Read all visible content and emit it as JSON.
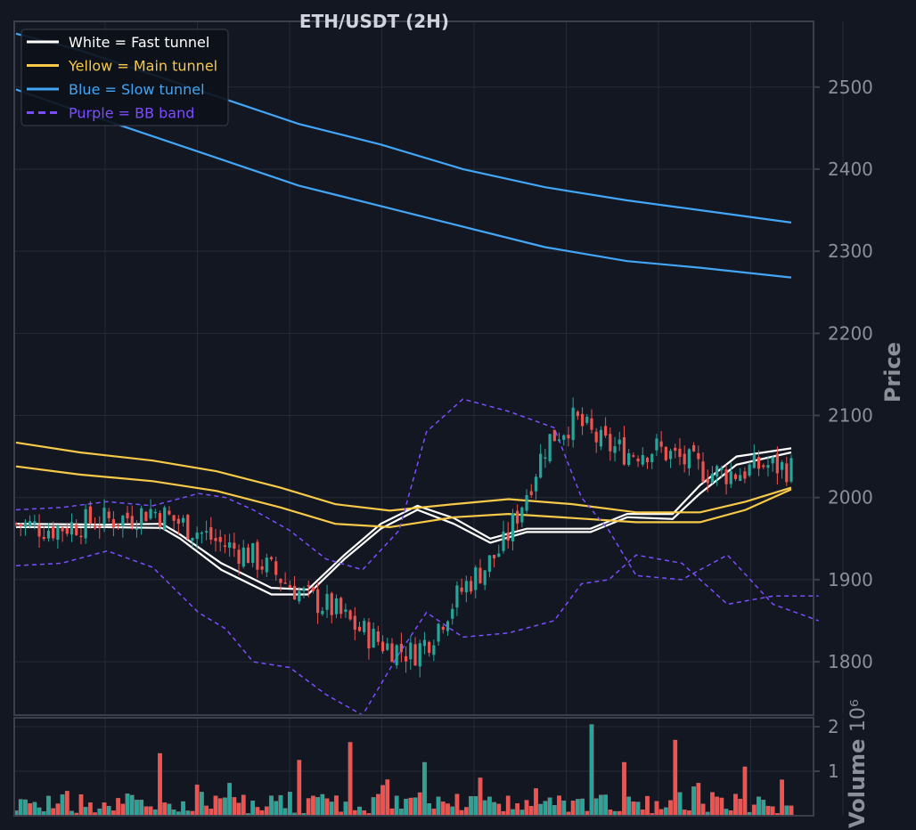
{
  "chart_data": [
    {
      "type": "candlestick",
      "title": "ETH/USDT (2H)",
      "ylabel": "Price",
      "ylim": [
        1735,
        2580
      ],
      "y_ticks": [
        1800,
        1900,
        2000,
        2100,
        2200,
        2300,
        2400,
        2500
      ],
      "grid": true,
      "legend_position": "top-left",
      "legend": [
        {
          "label": "White = Fast tunnel",
          "color": "#ffffff",
          "style": "solid"
        },
        {
          "label": "Yellow = Main tunnel",
          "color": "#f7c948",
          "style": "solid"
        },
        {
          "label": "Blue = Slow tunnel",
          "color": "#42a5f5",
          "style": "solid"
        },
        {
          "label": "Purple = BB band",
          "color": "#7c4dff",
          "style": "dashed"
        }
      ],
      "candle_count": 168,
      "close_path": [
        [
          0,
          1968
        ],
        [
          8,
          1962
        ],
        [
          16,
          1970
        ],
        [
          24,
          1975
        ],
        [
          30,
          1985
        ],
        [
          34,
          1975
        ],
        [
          40,
          1960
        ],
        [
          45,
          1945
        ],
        [
          52,
          1930
        ],
        [
          58,
          1905
        ],
        [
          64,
          1880
        ],
        [
          70,
          1865
        ],
        [
          76,
          1840
        ],
        [
          82,
          1820
        ],
        [
          88,
          1810
        ],
        [
          92,
          1830
        ],
        [
          96,
          1865
        ],
        [
          100,
          1895
        ],
        [
          104,
          1915
        ],
        [
          108,
          1940
        ],
        [
          112,
          1990
        ],
        [
          118,
          2070
        ],
        [
          124,
          2095
        ],
        [
          130,
          2065
        ],
        [
          136,
          2055
        ],
        [
          142,
          2060
        ],
        [
          148,
          2045
        ],
        [
          154,
          2030
        ],
        [
          160,
          2030
        ],
        [
          166,
          2040
        ],
        [
          172,
          2035
        ]
      ],
      "series": [
        {
          "name": "White = Fast tunnel",
          "color": "#ffffff",
          "points": [
            [
              0,
              1968
            ],
            [
              20,
              1967
            ],
            [
              32,
              1968
            ],
            [
              36,
              1955
            ],
            [
              45,
              1920
            ],
            [
              56,
              1890
            ],
            [
              64,
              1888
            ],
            [
              72,
              1930
            ],
            [
              80,
              1968
            ],
            [
              88,
              1990
            ],
            [
              96,
              1975
            ],
            [
              104,
              1950
            ],
            [
              112,
              1962
            ],
            [
              126,
              1962
            ],
            [
              134,
              1980
            ],
            [
              144,
              1980
            ],
            [
              150,
              2015
            ],
            [
              158,
              2050
            ],
            [
              170,
              2060
            ]
          ]
        },
        {
          "name": "White = Fast tunnel (lower)",
          "color": "#ffffff",
          "points": [
            [
              0,
              1964
            ],
            [
              20,
              1964
            ],
            [
              32,
              1963
            ],
            [
              36,
              1950
            ],
            [
              45,
              1912
            ],
            [
              56,
              1882
            ],
            [
              64,
              1882
            ],
            [
              72,
              1925
            ],
            [
              80,
              1962
            ],
            [
              88,
              1985
            ],
            [
              96,
              1968
            ],
            [
              104,
              1945
            ],
            [
              112,
              1958
            ],
            [
              126,
              1958
            ],
            [
              134,
              1976
            ],
            [
              144,
              1974
            ],
            [
              150,
              2005
            ],
            [
              158,
              2040
            ],
            [
              170,
              2055
            ]
          ]
        },
        {
          "name": "Yellow = Main tunnel",
          "color": "#f7c948",
          "points": [
            [
              0,
              2067
            ],
            [
              14,
              2055
            ],
            [
              30,
              2045
            ],
            [
              44,
              2032
            ],
            [
              58,
              2012
            ],
            [
              70,
              1992
            ],
            [
              82,
              1984
            ],
            [
              96,
              1992
            ],
            [
              108,
              1998
            ],
            [
              122,
              1992
            ],
            [
              136,
              1982
            ],
            [
              150,
              1982
            ],
            [
              160,
              1995
            ],
            [
              170,
              2012
            ]
          ]
        },
        {
          "name": "Yellow = Main tunnel (lower)",
          "color": "#f7c948",
          "points": [
            [
              0,
              2038
            ],
            [
              14,
              2028
            ],
            [
              30,
              2020
            ],
            [
              44,
              2008
            ],
            [
              58,
              1988
            ],
            [
              70,
              1968
            ],
            [
              82,
              1964
            ],
            [
              96,
              1976
            ],
            [
              108,
              1980
            ],
            [
              122,
              1975
            ],
            [
              136,
              1970
            ],
            [
              150,
              1970
            ],
            [
              160,
              1985
            ],
            [
              170,
              2010
            ]
          ]
        },
        {
          "name": "Blue = Slow tunnel",
          "color": "#42a5f5",
          "points": [
            [
              0,
              2565
            ],
            [
              14,
              2545
            ],
            [
              30,
              2515
            ],
            [
              46,
              2485
            ],
            [
              62,
              2455
            ],
            [
              80,
              2430
            ],
            [
              98,
              2400
            ],
            [
              116,
              2378
            ],
            [
              134,
              2362
            ],
            [
              150,
              2350
            ],
            [
              170,
              2335
            ]
          ]
        },
        {
          "name": "Blue = Slow tunnel (lower)",
          "color": "#42a5f5",
          "points": [
            [
              0,
              2497
            ],
            [
              14,
              2470
            ],
            [
              30,
              2440
            ],
            [
              46,
              2410
            ],
            [
              62,
              2380
            ],
            [
              80,
              2355
            ],
            [
              98,
              2330
            ],
            [
              116,
              2305
            ],
            [
              134,
              2288
            ],
            [
              150,
              2280
            ],
            [
              170,
              2268
            ]
          ]
        },
        {
          "name": "Purple = BB band",
          "color": "#7c4dff",
          "points": [
            [
              0,
              1985
            ],
            [
              10,
              1988
            ],
            [
              20,
              1995
            ],
            [
              30,
              1990
            ],
            [
              40,
              2005
            ],
            [
              46,
              2000
            ],
            [
              52,
              1985
            ],
            [
              60,
              1960
            ],
            [
              68,
              1925
            ],
            [
              76,
              1912
            ],
            [
              84,
              1960
            ],
            [
              90,
              2080
            ],
            [
              98,
              2120
            ],
            [
              108,
              2105
            ],
            [
              118,
              2085
            ],
            [
              124,
              2000
            ],
            [
              130,
              1960
            ],
            [
              136,
              1905
            ],
            [
              146,
              1900
            ],
            [
              156,
              1930
            ],
            [
              166,
              1870
            ],
            [
              176,
              1850
            ]
          ]
        },
        {
          "name": "Purple = BB band (lower)",
          "color": "#7c4dff",
          "points": [
            [
              0,
              1917
            ],
            [
              10,
              1920
            ],
            [
              20,
              1935
            ],
            [
              30,
              1915
            ],
            [
              40,
              1860
            ],
            [
              46,
              1840
            ],
            [
              52,
              1800
            ],
            [
              60,
              1793
            ],
            [
              68,
              1760
            ],
            [
              76,
              1735
            ],
            [
              84,
              1810
            ],
            [
              90,
              1860
            ],
            [
              98,
              1830
            ],
            [
              108,
              1835
            ],
            [
              118,
              1850
            ],
            [
              124,
              1895
            ],
            [
              130,
              1900
            ],
            [
              136,
              1930
            ],
            [
              146,
              1920
            ],
            [
              156,
              1870
            ],
            [
              166,
              1880
            ],
            [
              176,
              1880
            ]
          ]
        }
      ]
    },
    {
      "type": "bar",
      "ylabel": "Volume",
      "y_exponent": "10⁶",
      "y_ticks": [
        1,
        2
      ],
      "ylim": [
        0,
        2.2
      ],
      "bar_count": 168,
      "notable_peaks": [
        [
          32,
          1.4
        ],
        [
          62,
          1.25
        ],
        [
          73,
          1.65
        ],
        [
          90,
          1.2
        ],
        [
          126,
          2.05
        ],
        [
          133,
          1.2
        ],
        [
          145,
          1.7
        ],
        [
          160,
          1.1
        ]
      ],
      "colors": {
        "up": "#26a69a",
        "down": "#ef5350"
      }
    }
  ],
  "colors": {
    "background": "#131722",
    "grid": "#252a36",
    "axis": "#3a3f4b",
    "up": "#26a69a",
    "down": "#ef5350"
  }
}
